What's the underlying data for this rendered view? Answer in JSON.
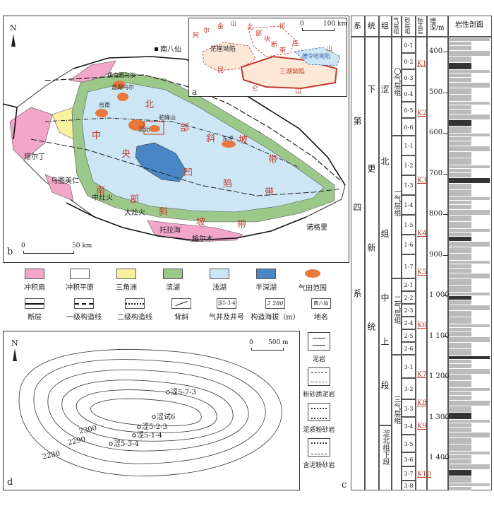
{
  "panel_b": {
    "label": "b",
    "north": "N",
    "scale": {
      "zero": "0",
      "value": "50 km"
    },
    "places": {
      "nanbaxian": "南八仙",
      "taerding": "塔尔丁",
      "wutumeiren": "乌图美仁",
      "zhongzhuoshi": "中灶火",
      "dazhuohuo": "大灶火",
      "tuolahai": "托拉海",
      "gelamu": "格尔木",
      "xiaoageli": "诺格里"
    },
    "gasfields": {
      "yiketuya": "伊克雅乌汝",
      "yanjiaquan": "盐湖乌尔",
      "tainan": "台南",
      "sebei": "涩北",
      "sebei2": "驼峰山",
      "sebei3": "东坪"
    },
    "zones": {
      "bei": "北",
      "bu": "部",
      "xie": "斜",
      "po": "坡",
      "dai1": "带",
      "zhong": "中",
      "yang": "央",
      "ao": "凹",
      "xian": "陷",
      "dai2": "带",
      "nan": "南",
      "bu2": "部",
      "xie2": "斜",
      "po2": "坡",
      "dai3": "带"
    }
  },
  "panel_a": {
    "label": "a",
    "scale": {
      "zero": "0",
      "value": "100 km"
    },
    "labels": {
      "er": "尔",
      "jin": "金",
      "shan": "山",
      "a": "阿",
      "mangya": "茫崖坳陷",
      "kun": "昆",
      "bei": "北",
      "bu": "部",
      "kuai": "块",
      "duan": "断",
      "dai": "带",
      "qi": "祁",
      "lian": "连",
      "shan2": "山",
      "delingha": "德令哈坳陷",
      "sanhu": "三湖坳陷",
      "lun": "仑",
      "shan3": "山"
    }
  },
  "legend": {
    "row1": [
      "冲积扇",
      "冲积平原",
      "三角洲",
      "滨湖",
      "浅湖",
      "半深湖",
      "气田范围"
    ],
    "colors": [
      "#f2a6c8",
      "#ffffff",
      "#f9f0a0",
      "#9cc98a",
      "#cde6f5",
      "#4a86c5",
      "#e8783c"
    ],
    "row2": [
      "断层",
      "一级构造线",
      "二级构造线",
      "背斜",
      "气井及井号",
      "构造海拔（m）",
      "地名"
    ],
    "well_sample": "涩5-3-4",
    "contour_sample": "2 280",
    "place_sample": "南八仙"
  },
  "panel_d": {
    "label": "d",
    "north": "N",
    "scale": {
      "zero": "0",
      "value": "500 m"
    },
    "contours": [
      "2300",
      "2290",
      "2280"
    ],
    "wells": [
      "涩5-7-3",
      "涩试6",
      "涩5-2-3",
      "涩5-1-4",
      "涩5-3-4"
    ]
  },
  "lithology_legend": [
    "泥岩",
    "粉砂质泥岩",
    "泥质粉砂岩",
    "含泥粉砂岩"
  ],
  "panel_c": {
    "label": "c",
    "headers": [
      "系",
      "统",
      "组",
      "气层组",
      "砂层组",
      "标志层",
      "埋深/m",
      "岩性剖面"
    ],
    "system": "第四系",
    "series": "下更新统",
    "formation": "涩北组",
    "members": [
      "中上段",
      "涩北组下段"
    ],
    "gas_groups": [
      "〇气层组",
      "一气层组",
      "二气层组",
      "三气层组"
    ],
    "sand_groups": [
      "0-1",
      "0-2",
      "0-3",
      "0-4",
      "0-5",
      "0-6",
      "1-1",
      "1-2",
      "1-3",
      "1-4",
      "1-5",
      "1-6",
      "1-7",
      "2-1",
      "2-2",
      "2-3",
      "2-4",
      "2-5",
      "2-6",
      "3-1",
      "3-2",
      "3-3",
      "3-4",
      "3-5",
      "3-6",
      "3-7",
      "3-8"
    ],
    "markers": [
      "K1",
      "K2",
      "K3",
      "K4",
      "K5",
      "K6",
      "K7",
      "K8",
      "K9",
      "K10"
    ],
    "depths": [
      "400",
      "500",
      "600",
      "700",
      "800",
      "900",
      "1 000",
      "1 100",
      "1 200",
      "1 300",
      "1 400"
    ]
  }
}
